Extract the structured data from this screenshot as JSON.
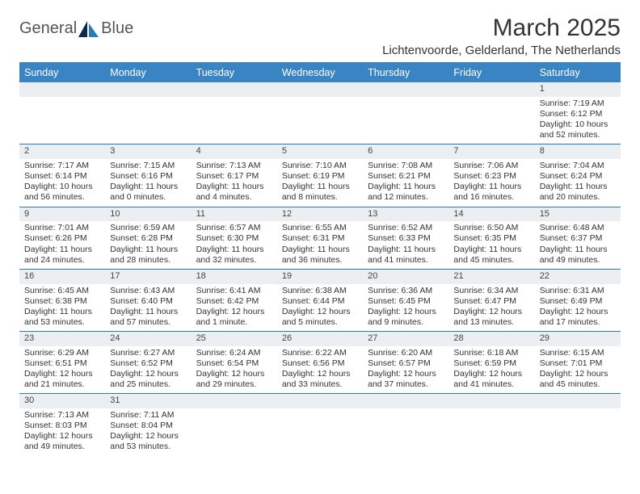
{
  "brand": {
    "name_a": "General",
    "name_b": "Blue"
  },
  "title": "March 2025",
  "subtitle": "Lichtenvoorde, Gelderland, The Netherlands",
  "colors": {
    "header_bg": "#3b84c4",
    "accent": "#2a7ab8",
    "row_shade": "#eceff1"
  },
  "day_headers": [
    "Sunday",
    "Monday",
    "Tuesday",
    "Wednesday",
    "Thursday",
    "Friday",
    "Saturday"
  ],
  "weeks": [
    [
      null,
      null,
      null,
      null,
      null,
      null,
      {
        "n": "1",
        "sr": "Sunrise: 7:19 AM",
        "ss": "Sunset: 6:12 PM",
        "dl": "Daylight: 10 hours and 52 minutes."
      }
    ],
    [
      {
        "n": "2",
        "sr": "Sunrise: 7:17 AM",
        "ss": "Sunset: 6:14 PM",
        "dl": "Daylight: 10 hours and 56 minutes."
      },
      {
        "n": "3",
        "sr": "Sunrise: 7:15 AM",
        "ss": "Sunset: 6:16 PM",
        "dl": "Daylight: 11 hours and 0 minutes."
      },
      {
        "n": "4",
        "sr": "Sunrise: 7:13 AM",
        "ss": "Sunset: 6:17 PM",
        "dl": "Daylight: 11 hours and 4 minutes."
      },
      {
        "n": "5",
        "sr": "Sunrise: 7:10 AM",
        "ss": "Sunset: 6:19 PM",
        "dl": "Daylight: 11 hours and 8 minutes."
      },
      {
        "n": "6",
        "sr": "Sunrise: 7:08 AM",
        "ss": "Sunset: 6:21 PM",
        "dl": "Daylight: 11 hours and 12 minutes."
      },
      {
        "n": "7",
        "sr": "Sunrise: 7:06 AM",
        "ss": "Sunset: 6:23 PM",
        "dl": "Daylight: 11 hours and 16 minutes."
      },
      {
        "n": "8",
        "sr": "Sunrise: 7:04 AM",
        "ss": "Sunset: 6:24 PM",
        "dl": "Daylight: 11 hours and 20 minutes."
      }
    ],
    [
      {
        "n": "9",
        "sr": "Sunrise: 7:01 AM",
        "ss": "Sunset: 6:26 PM",
        "dl": "Daylight: 11 hours and 24 minutes."
      },
      {
        "n": "10",
        "sr": "Sunrise: 6:59 AM",
        "ss": "Sunset: 6:28 PM",
        "dl": "Daylight: 11 hours and 28 minutes."
      },
      {
        "n": "11",
        "sr": "Sunrise: 6:57 AM",
        "ss": "Sunset: 6:30 PM",
        "dl": "Daylight: 11 hours and 32 minutes."
      },
      {
        "n": "12",
        "sr": "Sunrise: 6:55 AM",
        "ss": "Sunset: 6:31 PM",
        "dl": "Daylight: 11 hours and 36 minutes."
      },
      {
        "n": "13",
        "sr": "Sunrise: 6:52 AM",
        "ss": "Sunset: 6:33 PM",
        "dl": "Daylight: 11 hours and 41 minutes."
      },
      {
        "n": "14",
        "sr": "Sunrise: 6:50 AM",
        "ss": "Sunset: 6:35 PM",
        "dl": "Daylight: 11 hours and 45 minutes."
      },
      {
        "n": "15",
        "sr": "Sunrise: 6:48 AM",
        "ss": "Sunset: 6:37 PM",
        "dl": "Daylight: 11 hours and 49 minutes."
      }
    ],
    [
      {
        "n": "16",
        "sr": "Sunrise: 6:45 AM",
        "ss": "Sunset: 6:38 PM",
        "dl": "Daylight: 11 hours and 53 minutes."
      },
      {
        "n": "17",
        "sr": "Sunrise: 6:43 AM",
        "ss": "Sunset: 6:40 PM",
        "dl": "Daylight: 11 hours and 57 minutes."
      },
      {
        "n": "18",
        "sr": "Sunrise: 6:41 AM",
        "ss": "Sunset: 6:42 PM",
        "dl": "Daylight: 12 hours and 1 minute."
      },
      {
        "n": "19",
        "sr": "Sunrise: 6:38 AM",
        "ss": "Sunset: 6:44 PM",
        "dl": "Daylight: 12 hours and 5 minutes."
      },
      {
        "n": "20",
        "sr": "Sunrise: 6:36 AM",
        "ss": "Sunset: 6:45 PM",
        "dl": "Daylight: 12 hours and 9 minutes."
      },
      {
        "n": "21",
        "sr": "Sunrise: 6:34 AM",
        "ss": "Sunset: 6:47 PM",
        "dl": "Daylight: 12 hours and 13 minutes."
      },
      {
        "n": "22",
        "sr": "Sunrise: 6:31 AM",
        "ss": "Sunset: 6:49 PM",
        "dl": "Daylight: 12 hours and 17 minutes."
      }
    ],
    [
      {
        "n": "23",
        "sr": "Sunrise: 6:29 AM",
        "ss": "Sunset: 6:51 PM",
        "dl": "Daylight: 12 hours and 21 minutes."
      },
      {
        "n": "24",
        "sr": "Sunrise: 6:27 AM",
        "ss": "Sunset: 6:52 PM",
        "dl": "Daylight: 12 hours and 25 minutes."
      },
      {
        "n": "25",
        "sr": "Sunrise: 6:24 AM",
        "ss": "Sunset: 6:54 PM",
        "dl": "Daylight: 12 hours and 29 minutes."
      },
      {
        "n": "26",
        "sr": "Sunrise: 6:22 AM",
        "ss": "Sunset: 6:56 PM",
        "dl": "Daylight: 12 hours and 33 minutes."
      },
      {
        "n": "27",
        "sr": "Sunrise: 6:20 AM",
        "ss": "Sunset: 6:57 PM",
        "dl": "Daylight: 12 hours and 37 minutes."
      },
      {
        "n": "28",
        "sr": "Sunrise: 6:18 AM",
        "ss": "Sunset: 6:59 PM",
        "dl": "Daylight: 12 hours and 41 minutes."
      },
      {
        "n": "29",
        "sr": "Sunrise: 6:15 AM",
        "ss": "Sunset: 7:01 PM",
        "dl": "Daylight: 12 hours and 45 minutes."
      }
    ],
    [
      {
        "n": "30",
        "sr": "Sunrise: 7:13 AM",
        "ss": "Sunset: 8:03 PM",
        "dl": "Daylight: 12 hours and 49 minutes."
      },
      {
        "n": "31",
        "sr": "Sunrise: 7:11 AM",
        "ss": "Sunset: 8:04 PM",
        "dl": "Daylight: 12 hours and 53 minutes."
      },
      null,
      null,
      null,
      null,
      null
    ]
  ]
}
